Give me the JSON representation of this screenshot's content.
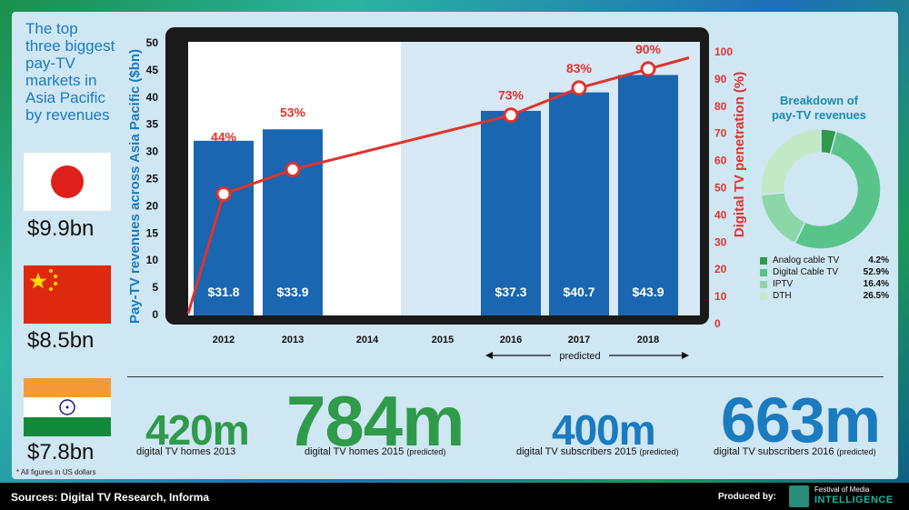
{
  "sidebar": {
    "title": "The top\nthree biggest\npay-TV\nmarkets in\nAsia Pacific\nby revenues",
    "markets": [
      {
        "flag": "japan-flag-icon",
        "revenue": "$9.9bn"
      },
      {
        "flag": "china-flag-icon",
        "revenue": "$8.5bn"
      },
      {
        "flag": "india-flag-icon",
        "revenue": "$7.8bn"
      }
    ]
  },
  "chart_data": {
    "type": "bar",
    "categories": [
      "2012",
      "2013",
      "2014",
      "2015",
      "2016",
      "2017",
      "2018"
    ],
    "series": [
      {
        "values": [
          31.8,
          33.9,
          null,
          null,
          37.3,
          40.7,
          43.9
        ],
        "labels": [
          "$31.8",
          "$33.9",
          "",
          "",
          "$37.3",
          "$40.7",
          "$43.9"
        ]
      },
      {
        "values": [
          44,
          53,
          null,
          null,
          73,
          83,
          90
        ],
        "labels": [
          "44%",
          "53%",
          "",
          "",
          "73%",
          "83%",
          "90%"
        ]
      }
    ],
    "ylabel": "Pay-TV revenues across Asia Pacific ($bn)",
    "y2label": "Digital TV penetration (%)",
    "ylim": [
      0,
      50
    ],
    "y2lim": [
      0,
      100
    ],
    "yticks": [
      "0",
      "5",
      "10",
      "15",
      "20",
      "25",
      "30",
      "35",
      "40",
      "45",
      "50"
    ],
    "y2ticks": [
      "0",
      "10",
      "20",
      "30",
      "40",
      "50",
      "60",
      "70",
      "80",
      "90",
      "100"
    ],
    "annotation": "predicted",
    "colors": {
      "bar": "#1a66b0",
      "line": "#e0332e",
      "predicted_bg": "#d6e9f5",
      "frame": "#1a1a1a",
      "left_axis": "#1a7bbf"
    }
  },
  "donut": {
    "title": "Breakdown of\npay-TV revenues",
    "slices": [
      {
        "label": "Analog cable TV",
        "value": 4.2,
        "pct": "4.2%",
        "color": "#2e9a4a"
      },
      {
        "label": "Digital Cable TV",
        "value": 52.9,
        "pct": "52.9%",
        "color": "#58c48a"
      },
      {
        "label": "IPTV",
        "value": 16.4,
        "pct": "16.4%",
        "color": "#8dd6a8"
      },
      {
        "label": "DTH",
        "value": 26.5,
        "pct": "26.5%",
        "color": "#c3e8c5"
      }
    ]
  },
  "stats": [
    {
      "value": "420m",
      "caption": "digital TV homes 2013",
      "color": "#2e9a4a"
    },
    {
      "value": "784m",
      "caption": "digital TV homes 2015",
      "caption_note": "(predicted)",
      "color": "#2e9a4a"
    },
    {
      "value": "400m",
      "caption": "digital TV subscribers 2015",
      "caption_note": "(predicted)",
      "color": "#1a7bbf"
    },
    {
      "value": "663m",
      "caption": "digital TV subscribers 2016",
      "caption_note": "(predicted)",
      "color": "#1a7bbf"
    }
  ],
  "footnote": "* All figures in US dollars",
  "footer": {
    "sources": "Sources: Digital TV Research, Informa",
    "produced_by": "Produced by:",
    "logo_top": "Festival of Media",
    "logo_bottom": "INTELLIGENCE"
  }
}
